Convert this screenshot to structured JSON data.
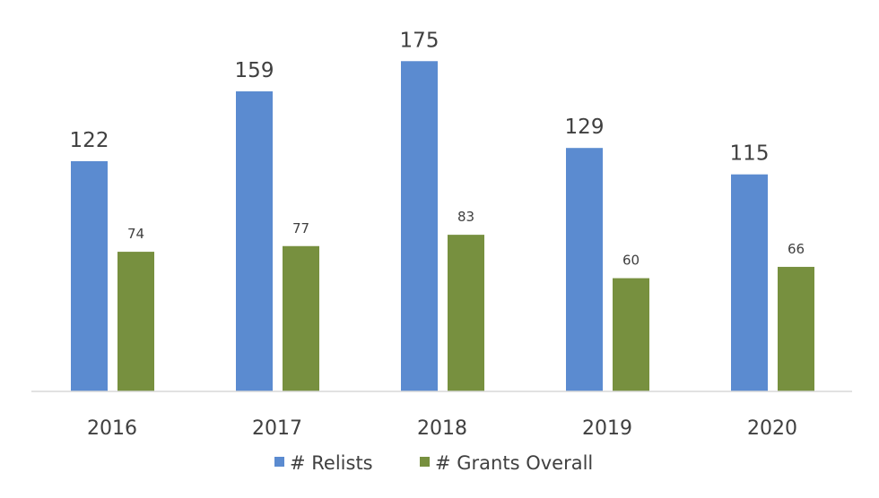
{
  "chart_data": {
    "type": "bar",
    "title": "",
    "xlabel": "",
    "ylabel": "",
    "categories": [
      "2016",
      "2017",
      "2018",
      "2019",
      "2020"
    ],
    "series": [
      {
        "name": "# Relists",
        "values": [
          122,
          159,
          175,
          129,
          115
        ],
        "color": "#5b8bd0"
      },
      {
        "name": "# Grants Overall",
        "values": [
          74,
          77,
          83,
          60,
          66
        ],
        "color": "#77903f"
      }
    ],
    "ylim": [
      0,
      175
    ],
    "grid": false,
    "data_labels": true,
    "legend": "bottom"
  }
}
